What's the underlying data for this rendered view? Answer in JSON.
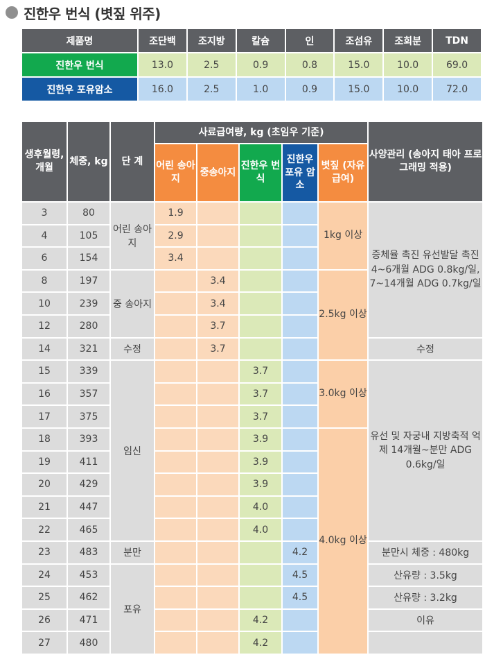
{
  "title": "진한우 번식 (볏짚 위주)",
  "nutrition": {
    "headers": [
      "제품명",
      "조단백",
      "조지방",
      "칼슘",
      "인",
      "조섬유",
      "조회분",
      "TDN"
    ],
    "rows": [
      {
        "name": "진한우 번식",
        "values": [
          "13.0",
          "2.5",
          "0.9",
          "0.8",
          "15.0",
          "10.0",
          "69.0"
        ]
      },
      {
        "name": "진한우 포유암소",
        "values": [
          "16.0",
          "2.5",
          "1.0",
          "0.9",
          "15.0",
          "10.0",
          "72.0"
        ]
      }
    ]
  },
  "feeding": {
    "head": {
      "age": "생후월령, 개월",
      "weight": "체중, kg",
      "stage": "단 계",
      "amount": "사료급여량, kg (초임우 기준)",
      "c1": "어린 송아지",
      "c2": "중송아지",
      "c3": "진한우 번식",
      "c4": "진한우 포유 암소",
      "c5": "볏짚 (자유급여)",
      "mgmt": "사양관리 (송아지 태아 프로그래밍 적용)"
    },
    "rows": [
      {
        "age": "3",
        "weight": "80",
        "f1": "1.9",
        "f2": "",
        "f3": "",
        "f4": ""
      },
      {
        "age": "4",
        "weight": "105",
        "f1": "2.9",
        "f2": "",
        "f3": "",
        "f4": ""
      },
      {
        "age": "6",
        "weight": "154",
        "f1": "3.4",
        "f2": "",
        "f3": "",
        "f4": ""
      },
      {
        "age": "8",
        "weight": "197",
        "f1": "",
        "f2": "3.4",
        "f3": "",
        "f4": ""
      },
      {
        "age": "10",
        "weight": "239",
        "f1": "",
        "f2": "3.4",
        "f3": "",
        "f4": ""
      },
      {
        "age": "12",
        "weight": "280",
        "f1": "",
        "f2": "3.7",
        "f3": "",
        "f4": ""
      },
      {
        "age": "14",
        "weight": "321",
        "f1": "",
        "f2": "3.7",
        "f3": "",
        "f4": ""
      },
      {
        "age": "15",
        "weight": "339",
        "f1": "",
        "f2": "",
        "f3": "3.7",
        "f4": ""
      },
      {
        "age": "16",
        "weight": "357",
        "f1": "",
        "f2": "",
        "f3": "3.7",
        "f4": ""
      },
      {
        "age": "17",
        "weight": "375",
        "f1": "",
        "f2": "",
        "f3": "3.7",
        "f4": ""
      },
      {
        "age": "18",
        "weight": "393",
        "f1": "",
        "f2": "",
        "f3": "3.9",
        "f4": ""
      },
      {
        "age": "19",
        "weight": "411",
        "f1": "",
        "f2": "",
        "f3": "3.9",
        "f4": ""
      },
      {
        "age": "20",
        "weight": "429",
        "f1": "",
        "f2": "",
        "f3": "3.9",
        "f4": ""
      },
      {
        "age": "21",
        "weight": "447",
        "f1": "",
        "f2": "",
        "f3": "4.0",
        "f4": ""
      },
      {
        "age": "22",
        "weight": "465",
        "f1": "",
        "f2": "",
        "f3": "4.0",
        "f4": ""
      },
      {
        "age": "23",
        "weight": "483",
        "f1": "",
        "f2": "",
        "f3": "",
        "f4": "4.2"
      },
      {
        "age": "24",
        "weight": "453",
        "f1": "",
        "f2": "",
        "f3": "",
        "f4": "4.5"
      },
      {
        "age": "25",
        "weight": "462",
        "f1": "",
        "f2": "",
        "f3": "",
        "f4": "4.5"
      },
      {
        "age": "26",
        "weight": "471",
        "f1": "",
        "f2": "",
        "f3": "4.2",
        "f4": ""
      },
      {
        "age": "27",
        "weight": "480",
        "f1": "",
        "f2": "",
        "f3": "4.2",
        "f4": ""
      }
    ],
    "stages": {
      "calf": "어린 송아지",
      "mid": "중 송아지",
      "fert": "수정",
      "preg": "임신",
      "birth": "분만",
      "nurse": "포유"
    },
    "straw": {
      "s1": "1kg 이상",
      "s2": "2.5kg 이상",
      "s3": "3.0kg 이상",
      "s4": "4.0kg 이상"
    },
    "mgmt": {
      "m1": "증체율 촉진 유선발달 촉진 4~6개월 ADG 0.8kg/일, 7~14개월 ADG 0.7kg/일",
      "m2": "수정",
      "m3": "유선 및 자궁내 지방축적 억제 14개월~분만 ADG 0.6kg/일",
      "m4": "분만시 체중 : 480kg",
      "m5": "산유량 : 3.5kg",
      "m6": "산유량 : 3.2kg",
      "m7": "이유"
    }
  }
}
